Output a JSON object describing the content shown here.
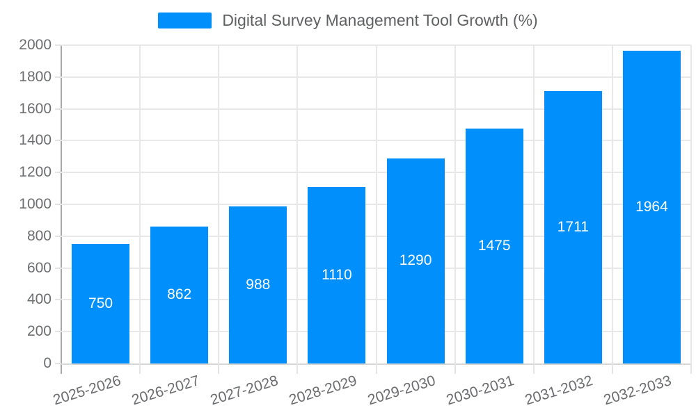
{
  "chart_data": {
    "type": "bar",
    "title": "Digital Survey Management Tool Growth (%)",
    "categories": [
      "2025-2026",
      "2026-2027",
      "2027-2028",
      "2028-2029",
      "2029-2030",
      "2030-2031",
      "2031-2032",
      "2032-2033"
    ],
    "series": [
      {
        "name": "Digital Survey Management Tool Growth (%)",
        "values": [
          750,
          862,
          988,
          1110,
          1290,
          1475,
          1711,
          1964
        ]
      }
    ],
    "xlabel": "",
    "ylabel": "",
    "ylim": [
      0,
      2000
    ],
    "ytick_step": 200,
    "grid": true,
    "legend_position": "top",
    "data_labels": "white, centered in bars"
  },
  "legend": {
    "label": "Digital Survey Management Tool Growth (%)"
  },
  "colors": {
    "bar": "#008FFB",
    "bar_label": "#ffffff",
    "axis_text": "#6b6d70",
    "legend_text": "#5f6163",
    "grid_line": "#e8e8e8",
    "y_axis_line": "#a8a8a8",
    "x_axis_line": "#d6d6d6"
  }
}
